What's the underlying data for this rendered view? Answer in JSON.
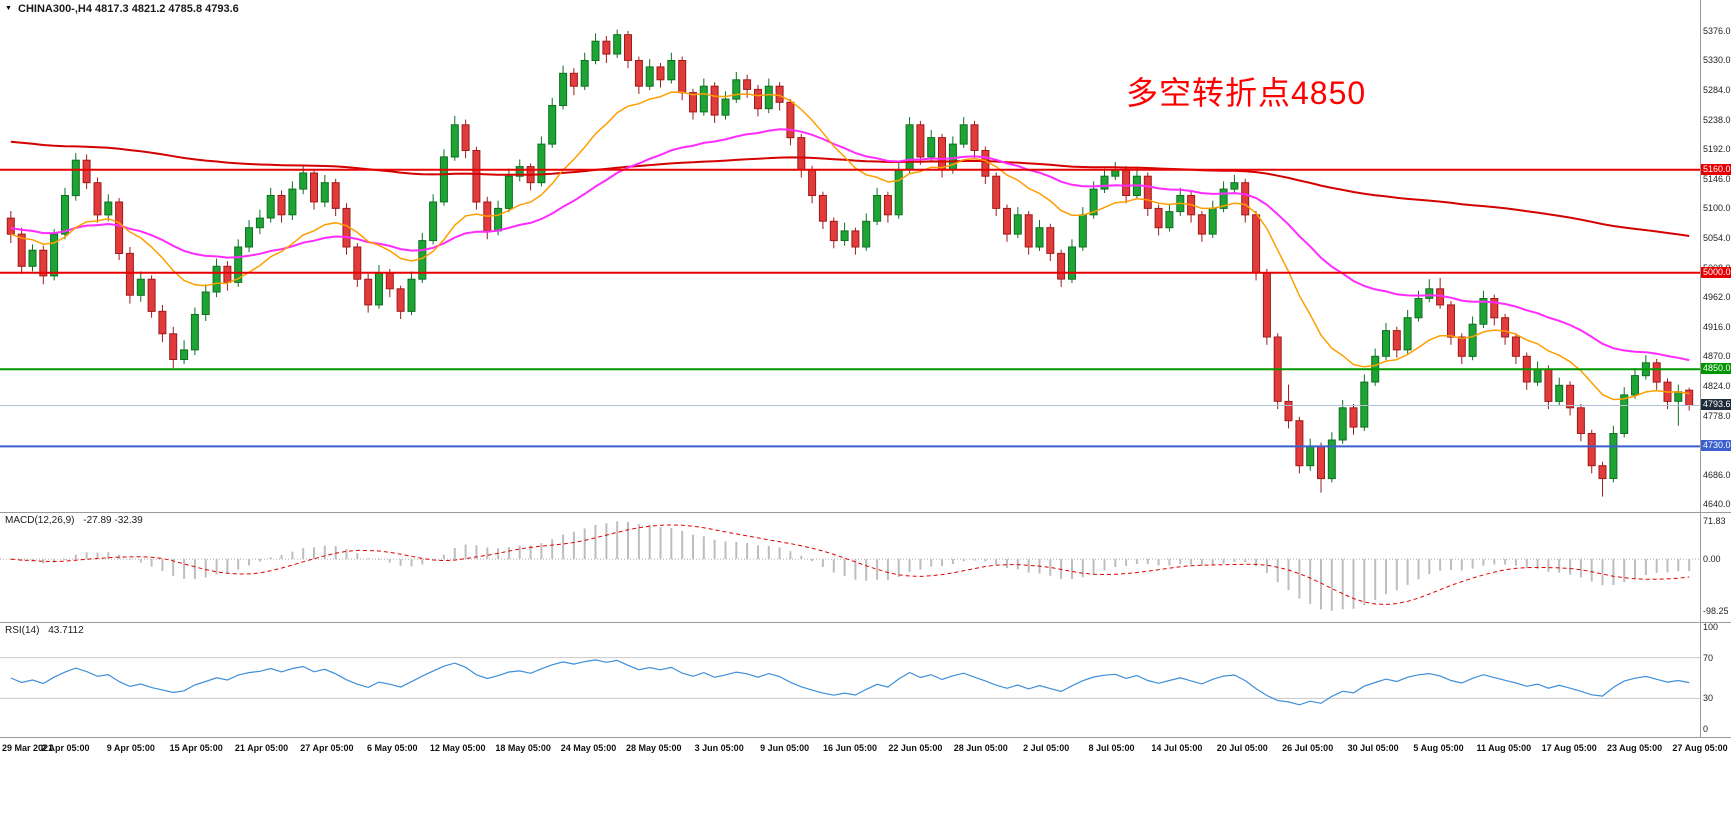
{
  "app": {
    "type": "trading-chart",
    "background": "#FFFFFF"
  },
  "symbol_header": {
    "text": "CHINA300-,H4 4817.3 4821.2 4785.8 4793.6"
  },
  "annotation": {
    "text": "多空转折点4850",
    "color": "#FF0000"
  },
  "chart_data": {
    "type": "candlestick",
    "symbol": "CHINA300-",
    "timeframe": "H4",
    "ohlc": {
      "open": 4817.3,
      "high": 4821.2,
      "low": 4785.8,
      "close": 4793.6
    },
    "colors": {
      "up": "#1EA335",
      "up_border": "#0E7020",
      "down": "#E23B3B",
      "down_border": "#9E1B1B"
    },
    "price_axis": {
      "min": 4640.0,
      "max": 5376.0,
      "step": 46.0,
      "labels": [
        "5376.0",
        "5330.0",
        "5284.0",
        "5238.0",
        "5192.0",
        "5146.0",
        "5100.0",
        "5054.0",
        "5008.0",
        "4962.0",
        "4916.0",
        "4870.0",
        "4824.0",
        "4778.0",
        "4732.0",
        "4686.0",
        "4640.0"
      ]
    },
    "time_axis": {
      "labels": [
        "29 Mar 2021",
        "2 Apr 05:00",
        "9 Apr 05:00",
        "15 Apr 05:00",
        "21 Apr 05:00",
        "27 Apr 05:00",
        "6 May 05:00",
        "12 May 05:00",
        "18 May 05:00",
        "24 May 05:00",
        "28 May 05:00",
        "3 Jun 05:00",
        "9 Jun 05:00",
        "16 Jun 05:00",
        "22 Jun 05:00",
        "28 Jun 05:00",
        "2 Jul 05:00",
        "8 Jul 05:00",
        "14 Jul 05:00",
        "20 Jul 05:00",
        "26 Jul 05:00",
        "30 Jul 05:00",
        "5 Aug 05:00",
        "11 Aug 05:00",
        "17 Aug 05:00",
        "23 Aug 05:00",
        "27 Aug 05:00"
      ]
    },
    "levels": [
      {
        "price": 5160.0,
        "label": "5160.0",
        "color": "#E80000",
        "label_bg": "#E80000",
        "width": 2
      },
      {
        "price": 5000.0,
        "label": "5000.0",
        "color": "#E80000",
        "label_bg": "#E80000",
        "width": 2
      },
      {
        "price": 4850.0,
        "label": "4850.0",
        "color": "#009600",
        "label_bg": "#009600",
        "width": 2
      },
      {
        "price": 4793.6,
        "label": "4793.6",
        "color": "#AFC2D5",
        "label_bg": "#1D2B3A",
        "width": 1
      },
      {
        "price": 4730.0,
        "label": "4730.0",
        "color": "#3B5FCC",
        "label_bg": "#3B5FCC",
        "width": 2
      }
    ],
    "moving_averages": [
      {
        "name": "ma-slow",
        "color": "#D40000",
        "period": 220,
        "init": 5205,
        "width": 2
      },
      {
        "name": "ma-medium",
        "color": "#FF2BFF",
        "period": 40,
        "init": 5070,
        "width": 2
      },
      {
        "name": "ma-fast",
        "color": "#FF9E00",
        "period": 15,
        "init": 5060,
        "width": 1.5
      }
    ],
    "candles": [
      [
        5085,
        5096,
        5046,
        5060
      ],
      [
        5060,
        5070,
        4998,
        5010
      ],
      [
        5010,
        5044,
        5002,
        5035
      ],
      [
        5035,
        5042,
        4982,
        4995
      ],
      [
        4995,
        5068,
        4988,
        5060
      ],
      [
        5060,
        5132,
        5052,
        5120
      ],
      [
        5120,
        5186,
        5112,
        5175
      ],
      [
        5175,
        5184,
        5130,
        5140
      ],
      [
        5140,
        5148,
        5078,
        5090
      ],
      [
        5090,
        5122,
        5080,
        5110
      ],
      [
        5110,
        5116,
        5020,
        5030
      ],
      [
        5030,
        5040,
        4952,
        4965
      ],
      [
        4965,
        5002,
        4955,
        4990
      ],
      [
        4990,
        4996,
        4930,
        4940
      ],
      [
        4940,
        4950,
        4892,
        4905
      ],
      [
        4905,
        4916,
        4852,
        4865
      ],
      [
        4865,
        4895,
        4858,
        4880
      ],
      [
        4880,
        4946,
        4872,
        4935
      ],
      [
        4935,
        4982,
        4925,
        4970
      ],
      [
        4970,
        5022,
        4962,
        5010
      ],
      [
        5010,
        5018,
        4972,
        4985
      ],
      [
        4985,
        5052,
        4978,
        5040
      ],
      [
        5040,
        5082,
        5032,
        5070
      ],
      [
        5070,
        5098,
        5060,
        5085
      ],
      [
        5085,
        5132,
        5078,
        5120
      ],
      [
        5120,
        5128,
        5078,
        5090
      ],
      [
        5090,
        5142,
        5082,
        5130
      ],
      [
        5130,
        5168,
        5122,
        5155
      ],
      [
        5155,
        5160,
        5098,
        5110
      ],
      [
        5110,
        5152,
        5102,
        5140
      ],
      [
        5140,
        5146,
        5088,
        5100
      ],
      [
        5100,
        5108,
        5028,
        5040
      ],
      [
        5040,
        5046,
        4978,
        4990
      ],
      [
        4990,
        4998,
        4938,
        4950
      ],
      [
        4950,
        5012,
        4944,
        5000
      ],
      [
        5000,
        5006,
        4962,
        4975
      ],
      [
        4975,
        4980,
        4928,
        4940
      ],
      [
        4940,
        5002,
        4934,
        4990
      ],
      [
        4990,
        5062,
        4984,
        5050
      ],
      [
        5050,
        5122,
        5044,
        5110
      ],
      [
        5110,
        5192,
        5104,
        5180
      ],
      [
        5180,
        5244,
        5174,
        5230
      ],
      [
        5230,
        5238,
        5178,
        5190
      ],
      [
        5190,
        5196,
        5098,
        5110
      ],
      [
        5110,
        5118,
        5052,
        5065
      ],
      [
        5065,
        5112,
        5058,
        5100
      ],
      [
        5100,
        5162,
        5094,
        5150
      ],
      [
        5150,
        5176,
        5142,
        5165
      ],
      [
        5165,
        5170,
        5128,
        5140
      ],
      [
        5140,
        5212,
        5134,
        5200
      ],
      [
        5200,
        5272,
        5194,
        5260
      ],
      [
        5260,
        5322,
        5254,
        5310
      ],
      [
        5310,
        5318,
        5276,
        5290
      ],
      [
        5290,
        5342,
        5284,
        5330
      ],
      [
        5330,
        5372,
        5324,
        5360
      ],
      [
        5360,
        5368,
        5326,
        5340
      ],
      [
        5340,
        5378,
        5334,
        5370
      ],
      [
        5370,
        5376,
        5318,
        5330
      ],
      [
        5330,
        5336,
        5278,
        5290
      ],
      [
        5290,
        5332,
        5284,
        5320
      ],
      [
        5320,
        5326,
        5288,
        5300
      ],
      [
        5300,
        5342,
        5294,
        5330
      ],
      [
        5330,
        5336,
        5268,
        5280
      ],
      [
        5280,
        5286,
        5238,
        5250
      ],
      [
        5250,
        5302,
        5244,
        5290
      ],
      [
        5290,
        5296,
        5233,
        5245
      ],
      [
        5245,
        5282,
        5238,
        5270
      ],
      [
        5270,
        5312,
        5264,
        5300
      ],
      [
        5300,
        5308,
        5272,
        5285
      ],
      [
        5285,
        5292,
        5243,
        5255
      ],
      [
        5255,
        5302,
        5248,
        5290
      ],
      [
        5290,
        5296,
        5252,
        5265
      ],
      [
        5265,
        5270,
        5198,
        5210
      ],
      [
        5210,
        5216,
        5148,
        5160
      ],
      [
        5160,
        5166,
        5108,
        5120
      ],
      [
        5120,
        5126,
        5068,
        5080
      ],
      [
        5080,
        5086,
        5038,
        5050
      ],
      [
        5050,
        5078,
        5042,
        5065
      ],
      [
        5065,
        5070,
        5028,
        5040
      ],
      [
        5040,
        5092,
        5034,
        5080
      ],
      [
        5080,
        5132,
        5074,
        5120
      ],
      [
        5120,
        5126,
        5078,
        5090
      ],
      [
        5090,
        5172,
        5084,
        5160
      ],
      [
        5160,
        5242,
        5154,
        5230
      ],
      [
        5230,
        5236,
        5168,
        5180
      ],
      [
        5180,
        5222,
        5174,
        5210
      ],
      [
        5210,
        5216,
        5148,
        5160
      ],
      [
        5160,
        5212,
        5154,
        5200
      ],
      [
        5200,
        5242,
        5194,
        5230
      ],
      [
        5230,
        5236,
        5178,
        5190
      ],
      [
        5190,
        5196,
        5138,
        5150
      ],
      [
        5150,
        5156,
        5088,
        5100
      ],
      [
        5100,
        5106,
        5048,
        5060
      ],
      [
        5060,
        5102,
        5054,
        5090
      ],
      [
        5090,
        5096,
        5028,
        5040
      ],
      [
        5040,
        5082,
        5034,
        5070
      ],
      [
        5070,
        5076,
        5018,
        5030
      ],
      [
        5030,
        5036,
        4978,
        4990
      ],
      [
        4990,
        5052,
        4984,
        5040
      ],
      [
        5040,
        5102,
        5034,
        5090
      ],
      [
        5090,
        5142,
        5084,
        5130
      ],
      [
        5130,
        5162,
        5124,
        5150
      ],
      [
        5150,
        5172,
        5144,
        5160
      ],
      [
        5160,
        5166,
        5108,
        5120
      ],
      [
        5120,
        5162,
        5114,
        5150
      ],
      [
        5150,
        5156,
        5088,
        5100
      ],
      [
        5100,
        5106,
        5058,
        5070
      ],
      [
        5070,
        5107,
        5064,
        5095
      ],
      [
        5095,
        5132,
        5088,
        5120
      ],
      [
        5120,
        5126,
        5078,
        5090
      ],
      [
        5090,
        5096,
        5048,
        5060
      ],
      [
        5060,
        5112,
        5054,
        5100
      ],
      [
        5100,
        5142,
        5094,
        5130
      ],
      [
        5130,
        5152,
        5124,
        5140
      ],
      [
        5140,
        5146,
        5078,
        5090
      ],
      [
        5090,
        5096,
        4988,
        5000
      ],
      [
        5000,
        5006,
        4888,
        4900
      ],
      [
        4900,
        4906,
        4788,
        4800
      ],
      [
        4800,
        4826,
        4758,
        4770
      ],
      [
        4770,
        4776,
        4688,
        4700
      ],
      [
        4700,
        4742,
        4692,
        4730
      ],
      [
        4730,
        4736,
        4658,
        4680
      ],
      [
        4680,
        4752,
        4674,
        4740
      ],
      [
        4740,
        4802,
        4734,
        4790
      ],
      [
        4790,
        4796,
        4748,
        4760
      ],
      [
        4760,
        4842,
        4754,
        4830
      ],
      [
        4830,
        4882,
        4824,
        4870
      ],
      [
        4870,
        4922,
        4864,
        4910
      ],
      [
        4910,
        4916,
        4868,
        4880
      ],
      [
        4880,
        4942,
        4874,
        4930
      ],
      [
        4930,
        4972,
        4924,
        4960
      ],
      [
        4960,
        4990,
        4954,
        4975
      ],
      [
        4975,
        4992,
        4944,
        4950
      ],
      [
        4950,
        4956,
        4888,
        4900
      ],
      [
        4900,
        4906,
        4858,
        4870
      ],
      [
        4870,
        4932,
        4864,
        4920
      ],
      [
        4920,
        4972,
        4914,
        4960
      ],
      [
        4960,
        4966,
        4918,
        4930
      ],
      [
        4930,
        4936,
        4888,
        4900
      ],
      [
        4900,
        4906,
        4858,
        4870
      ],
      [
        4870,
        4876,
        4818,
        4830
      ],
      [
        4830,
        4862,
        4824,
        4850
      ],
      [
        4850,
        4856,
        4788,
        4800
      ],
      [
        4800,
        4837,
        4794,
        4825
      ],
      [
        4825,
        4831,
        4778,
        4790
      ],
      [
        4790,
        4796,
        4738,
        4750
      ],
      [
        4750,
        4756,
        4688,
        4700
      ],
      [
        4700,
        4706,
        4652,
        4680
      ],
      [
        4680,
        4762,
        4674,
        4750
      ],
      [
        4750,
        4822,
        4744,
        4810
      ],
      [
        4810,
        4852,
        4804,
        4840
      ],
      [
        4840,
        4872,
        4834,
        4860
      ],
      [
        4860,
        4866,
        4818,
        4830
      ],
      [
        4830,
        4836,
        4788,
        4800
      ],
      [
        4800,
        4826,
        4762,
        4815
      ],
      [
        4817.3,
        4821.2,
        4785.8,
        4793.6
      ]
    ],
    "indicators": [
      {
        "name": "MACD",
        "title": "MACD(12,26,9)",
        "values_text": "-27.89 -32.39",
        "axis_labels": [
          "71.83",
          "0.00",
          "-98.25"
        ],
        "histogram_color": "#BDBDBD",
        "signal_color": "#E00000"
      },
      {
        "name": "RSI",
        "title": "RSI(14)",
        "values_text": "43.7112",
        "axis_labels": [
          "100",
          "70",
          "30",
          "0"
        ],
        "levels": [
          70,
          30
        ],
        "line_color": "#3E8FD8"
      }
    ]
  }
}
